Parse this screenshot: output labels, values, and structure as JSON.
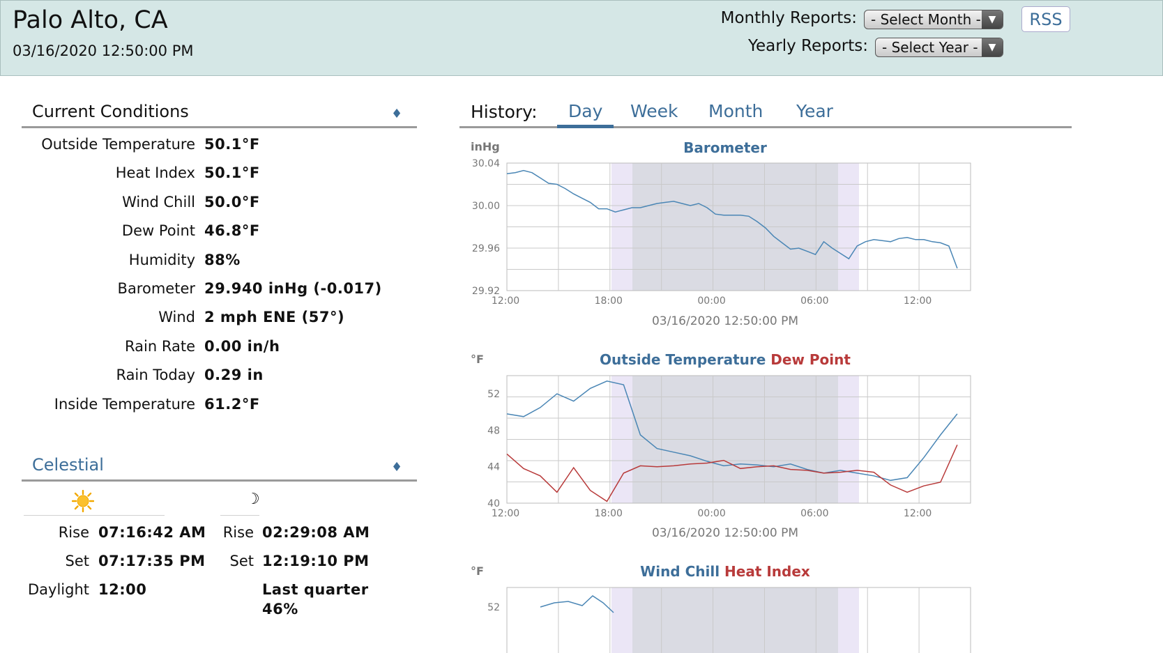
{
  "header": {
    "station": "Palo Alto, CA",
    "timestamp": "03/16/2020 12:50:00 PM",
    "monthly_label": "Monthly Reports:",
    "monthly_select": "- Select Month -",
    "yearly_label": "Yearly Reports:",
    "yearly_select": "- Select Year -",
    "rss": "RSS"
  },
  "current": {
    "title": "Current Conditions",
    "rows": [
      {
        "label": "Outside Temperature",
        "value": "50.1°F"
      },
      {
        "label": "Heat Index",
        "value": "50.1°F"
      },
      {
        "label": "Wind Chill",
        "value": "50.0°F"
      },
      {
        "label": "Dew Point",
        "value": "46.8°F"
      },
      {
        "label": "Humidity",
        "value": "88%"
      },
      {
        "label": "Barometer",
        "value": "29.940 inHg (-0.017)"
      },
      {
        "label": "Wind",
        "value": "2 mph ENE (57°)"
      },
      {
        "label": "Rain Rate",
        "value": "0.00 in/h"
      },
      {
        "label": "Rain Today",
        "value": "0.29 in"
      },
      {
        "label": "Inside Temperature",
        "value": "61.2°F"
      }
    ]
  },
  "celestial": {
    "title": "Celestial",
    "sun_icon": "sun-icon",
    "moon_icon": "moon-icon",
    "sun": {
      "rise_label": "Rise",
      "rise": "07:16:42 AM",
      "set_label": "Set",
      "set": "07:17:35 PM",
      "daylight_label": "Daylight",
      "daylight": "12:00"
    },
    "moon": {
      "rise_label": "Rise",
      "rise": "02:29:08 AM",
      "set_label": "Set",
      "set": "12:19:10 PM",
      "phase": "Last quarter",
      "fullness": "46%"
    }
  },
  "history": {
    "label": "History:",
    "tabs": [
      "Day",
      "Week",
      "Month",
      "Year"
    ],
    "active_tab": "Day"
  },
  "colors": {
    "accent": "#3d6e99",
    "series_blue": "#4a86b5",
    "series_red": "#b83a3a",
    "header_bg": "#d5e7e6"
  },
  "chart_data": [
    {
      "type": "line",
      "title": "Barometer",
      "ylabel": "inHg",
      "ylim": [
        29.92,
        30.04
      ],
      "yticks": [
        "30.04",
        "30.00",
        "29.96",
        "29.92"
      ],
      "xticks": [
        "12:00",
        "18:00",
        "00:00",
        "06:00",
        "12:00"
      ],
      "xlabel": "03/16/2020 12:50:00 PM",
      "series": [
        {
          "name": "Barometer",
          "color": "#4a86b5",
          "x": [
            0,
            0.5,
            1,
            1.5,
            2,
            2.5,
            3,
            3.5,
            4,
            4.5,
            5,
            5.5,
            6,
            6.5,
            7,
            7.5,
            8,
            8.5,
            9,
            9.5,
            10,
            10.5,
            11,
            11.5,
            12,
            12.5,
            13,
            13.5,
            14,
            14.5,
            15,
            15.5,
            16,
            16.5,
            17,
            17.5,
            18,
            18.5,
            19,
            19.5,
            20,
            20.5,
            21,
            21.5,
            22,
            22.5,
            23,
            23.5,
            24,
            24.5,
            25,
            25.5,
            26,
            26.5,
            27
          ],
          "y": [
            30.03,
            30.031,
            30.033,
            30.031,
            30.026,
            30.021,
            30.02,
            30.016,
            30.011,
            30.007,
            30.003,
            29.997,
            29.997,
            29.994,
            29.996,
            29.998,
            29.998,
            30.0,
            30.002,
            30.003,
            30.004,
            30.002,
            30.0,
            30.002,
            29.998,
            29.992,
            29.991,
            29.991,
            29.991,
            29.99,
            29.985,
            29.979,
            29.971,
            29.965,
            29.959,
            29.96,
            29.957,
            29.954,
            29.966,
            29.96,
            29.955,
            29.95,
            29.962,
            29.966,
            29.968,
            29.967,
            29.966,
            29.969,
            29.97,
            29.968,
            29.968,
            29.966,
            29.965,
            29.962,
            29.941
          ]
        }
      ]
    },
    {
      "type": "line",
      "title": "Outside Temperature",
      "title2": "Dew Point",
      "ylabel": "°F",
      "ylim": [
        40,
        54
      ],
      "yticks": [
        "52",
        "48",
        "44",
        "40"
      ],
      "xticks": [
        "12:00",
        "18:00",
        "00:00",
        "06:00",
        "12:00"
      ],
      "xlabel": "03/16/2020 12:50:00 PM",
      "series": [
        {
          "name": "Outside Temperature",
          "color": "#4a86b5",
          "x": [
            0,
            1,
            2,
            3,
            4,
            5,
            6,
            7,
            8,
            9,
            10,
            11,
            12,
            13,
            14,
            15,
            16,
            17,
            18,
            19,
            20,
            21,
            22,
            23,
            24,
            25,
            26,
            27
          ],
          "y": [
            49.8,
            49.5,
            50.5,
            52.0,
            51.2,
            52.6,
            53.4,
            53.0,
            47.5,
            46.0,
            45.6,
            45.2,
            44.6,
            44.1,
            44.3,
            44.2,
            44.0,
            44.3,
            43.7,
            43.3,
            43.6,
            43.3,
            43.0,
            42.5,
            42.8,
            45.0,
            47.5,
            49.8
          ]
        },
        {
          "name": "Dew Point",
          "color": "#b83a3a",
          "x": [
            0,
            1,
            2,
            3,
            4,
            5,
            6,
            7,
            8,
            9,
            10,
            11,
            12,
            13,
            14,
            15,
            16,
            17,
            18,
            19,
            20,
            21,
            22,
            23,
            24,
            25,
            26,
            27
          ],
          "y": [
            45.4,
            43.8,
            43.0,
            41.2,
            43.9,
            41.4,
            40.2,
            43.3,
            44.1,
            44.0,
            44.1,
            44.3,
            44.4,
            44.7,
            43.8,
            44.0,
            44.1,
            43.7,
            43.6,
            43.3,
            43.4,
            43.6,
            43.4,
            42.0,
            41.2,
            41.9,
            42.3,
            46.4
          ]
        }
      ]
    },
    {
      "type": "line",
      "title": "Wind Chill",
      "title2": "Heat Index",
      "ylabel": "°F",
      "yticks": [
        "52"
      ]
    }
  ]
}
